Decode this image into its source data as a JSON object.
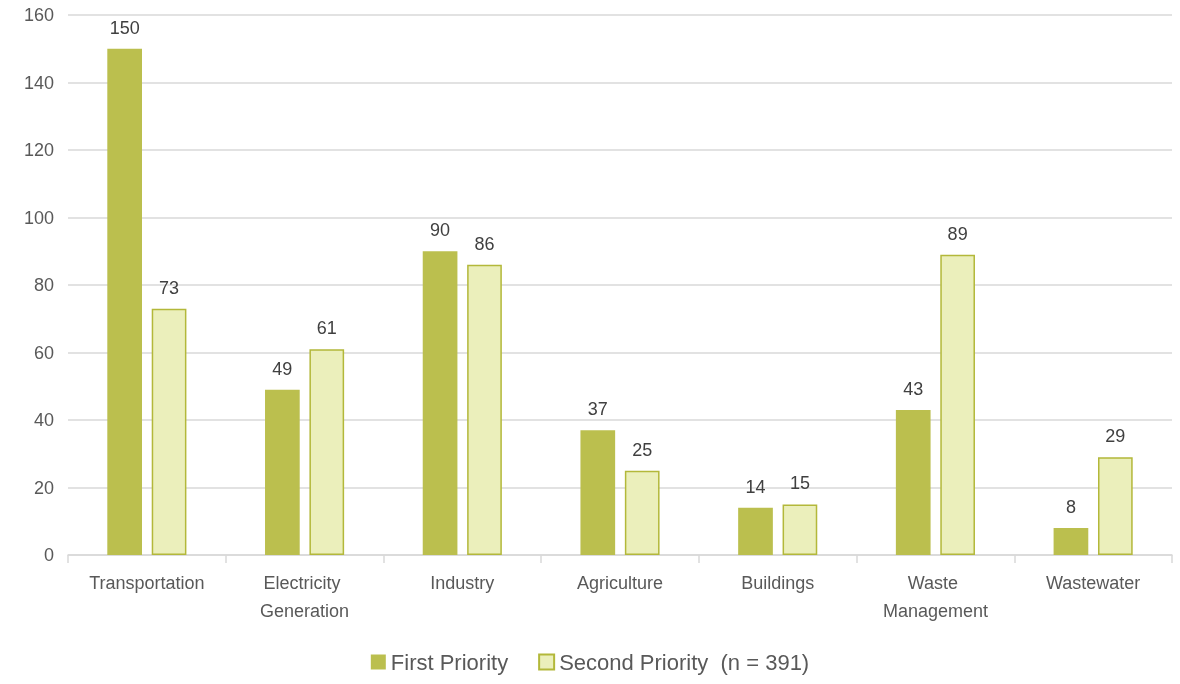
{
  "chart_data": {
    "type": "bar",
    "categories": [
      "Transportation",
      "Electricity Generation",
      "Industry",
      "Agriculture",
      "Buildings",
      "Waste Management",
      "Wastewater"
    ],
    "series": [
      {
        "name": "First Priority",
        "color": "#bbbf4e",
        "values": [
          150,
          49,
          90,
          37,
          14,
          43,
          8
        ]
      },
      {
        "name": "Second Priority  (n = 391)",
        "color": "#ebefbb",
        "values": [
          73,
          61,
          86,
          25,
          15,
          89,
          29
        ]
      }
    ],
    "ylim": [
      0,
      160
    ],
    "yticks": [
      0,
      20,
      40,
      60,
      80,
      100,
      120,
      140,
      160
    ],
    "grid": "y",
    "legend": "bottom",
    "data_labels": true
  }
}
